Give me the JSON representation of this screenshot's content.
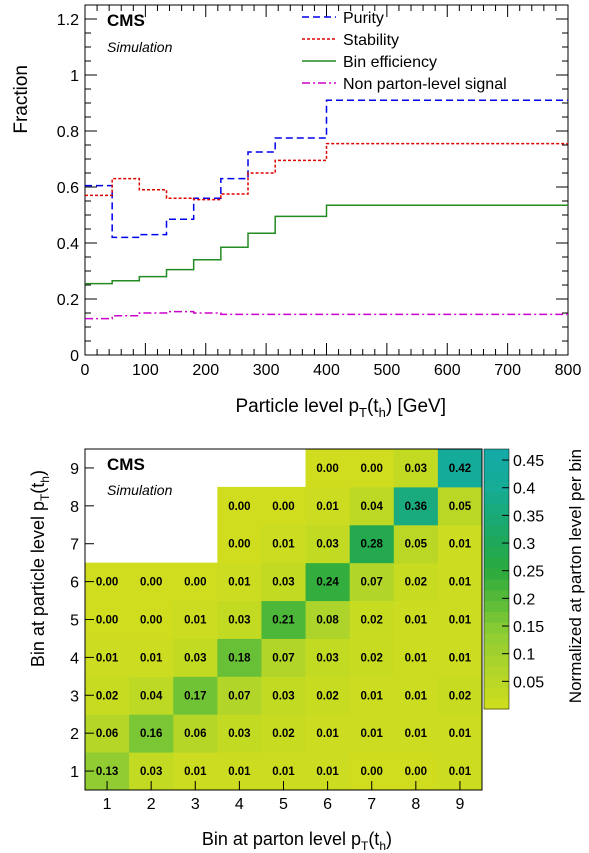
{
  "chart_data": [
    {
      "type": "line",
      "style": "step",
      "label": "CMS",
      "sublabel": "Simulation",
      "xlabel": {
        "main": "Particle level p",
        "sub1": "T",
        "mid": "(t",
        "sub2": "h",
        "tail": ") [GeV]"
      },
      "ylabel": "Fraction",
      "xlim": [
        0,
        800
      ],
      "ylim": [
        0,
        1.25
      ],
      "xticks": [
        0,
        100,
        200,
        300,
        400,
        500,
        600,
        700,
        800
      ],
      "yticks": [
        0,
        0.2,
        0.4,
        0.6,
        0.8,
        1,
        1.2
      ],
      "ytick_labels": [
        "0",
        "0.2",
        "0.4",
        "0.6",
        "0.8",
        "1",
        "1.2"
      ],
      "legend_position": "top-right",
      "bin_edges": [
        0,
        45,
        90,
        135,
        180,
        225,
        270,
        315,
        400,
        800
      ],
      "series": [
        {
          "name": "Purity",
          "color": "#0000ee",
          "dash": "dashed",
          "values": [
            0.605,
            0.42,
            0.43,
            0.485,
            0.56,
            0.63,
            0.725,
            0.775,
            0.91
          ]
        },
        {
          "name": "Stability",
          "color": "#dd0000",
          "dash": "dotted",
          "values": [
            0.57,
            0.63,
            0.59,
            0.56,
            0.555,
            0.575,
            0.65,
            0.695,
            0.755
          ]
        },
        {
          "name": "Bin efficiency",
          "color": "#228b22",
          "dash": "solid",
          "values": [
            0.255,
            0.265,
            0.28,
            0.305,
            0.34,
            0.385,
            0.435,
            0.495,
            0.535
          ]
        },
        {
          "name": "Non parton-level signal",
          "color": "#cc00cc",
          "dash": "dashdot",
          "values": [
            0.13,
            0.14,
            0.15,
            0.155,
            0.15,
            0.145,
            0.145,
            0.145,
            0.145
          ]
        }
      ]
    },
    {
      "type": "heatmap",
      "label": "CMS",
      "sublabel": "Simulation",
      "xlabel": {
        "main": "Bin at parton level p",
        "sub1": "T",
        "mid": "(t",
        "sub2": "h",
        "tail": ")"
      },
      "ylabel": {
        "main": "Bin at particle level p",
        "sub1": "T",
        "mid": "(t",
        "sub2": "h",
        "tail": ")"
      },
      "colorbar_label": "Normalized at parton level per bin",
      "colorbar_range": [
        0,
        0.47
      ],
      "colorbar_ticks": [
        0.05,
        0.1,
        0.15,
        0.2,
        0.25,
        0.3,
        0.35,
        0.4,
        0.45
      ],
      "colorbar_tick_labels": [
        "0.05",
        "0.1",
        "0.15",
        "0.2",
        "0.25",
        "0.3",
        "0.35",
        "0.4",
        "0.45"
      ],
      "x_categories": [
        "1",
        "2",
        "3",
        "4",
        "5",
        "6",
        "7",
        "8",
        "9"
      ],
      "y_categories": [
        "1",
        "2",
        "3",
        "4",
        "5",
        "6",
        "7",
        "8",
        "9"
      ],
      "rows_note_hidden": "",
      "cells": [
        {
          "row": 1,
          "values": [
            "0.13",
            "0.03",
            "0.01",
            "0.01",
            "0.01",
            "0.01",
            "0.00",
            "0.00",
            "0.01"
          ]
        },
        {
          "row": 2,
          "values": [
            "0.06",
            "0.16",
            "0.06",
            "0.03",
            "0.02",
            "0.01",
            "0.01",
            "0.01",
            "0.01"
          ]
        },
        {
          "row": 3,
          "values": [
            "0.02",
            "0.04",
            "0.17",
            "0.07",
            "0.03",
            "0.02",
            "0.01",
            "0.01",
            "0.02"
          ]
        },
        {
          "row": 4,
          "values": [
            "0.01",
            "0.01",
            "0.03",
            "0.18",
            "0.07",
            "0.03",
            "0.02",
            "0.01",
            "0.01"
          ]
        },
        {
          "row": 5,
          "values": [
            "0.00",
            "0.00",
            "0.01",
            "0.03",
            "0.21",
            "0.08",
            "0.02",
            "0.01",
            "0.01"
          ]
        },
        {
          "row": 6,
          "values": [
            "0.00",
            "0.00",
            "0.00",
            "0.01",
            "0.03",
            "0.24",
            "0.07",
            "0.02",
            "0.01"
          ]
        },
        {
          "row": 7,
          "values": [
            null,
            null,
            null,
            "0.00",
            "0.01",
            "0.03",
            "0.28",
            "0.05",
            "0.01"
          ]
        },
        {
          "row": 8,
          "values": [
            null,
            null,
            null,
            "0.00",
            "0.00",
            "0.01",
            "0.04",
            "0.36",
            "0.05"
          ]
        },
        {
          "row": 9,
          "values": [
            null,
            null,
            null,
            null,
            null,
            "0.00",
            "0.00",
            "0.03",
            "0.42"
          ]
        }
      ]
    }
  ]
}
